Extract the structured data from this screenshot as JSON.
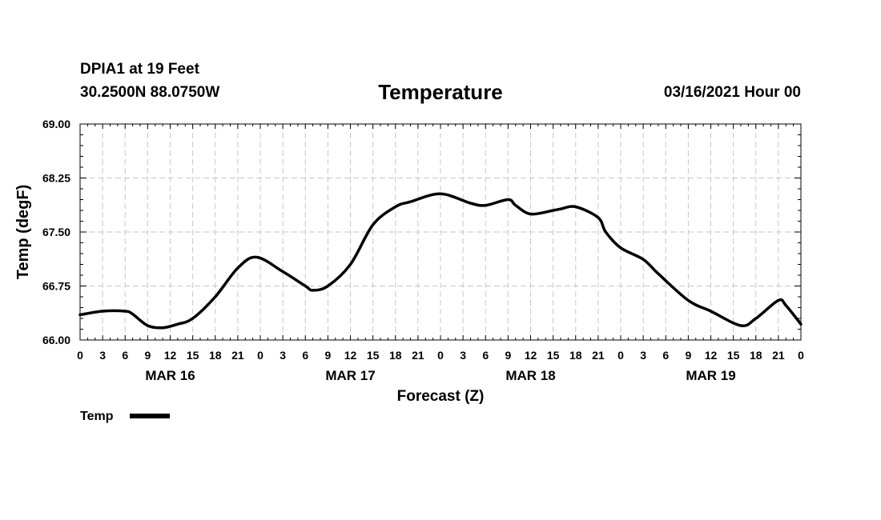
{
  "header": {
    "station": "DPIA1 at 19 Feet",
    "coords": "30.2500N 88.0750W",
    "title": "Temperature",
    "run_time": "03/16/2021 Hour 00"
  },
  "legend": {
    "label": "Temp"
  },
  "chart_data": {
    "type": "line",
    "title": "Temperature",
    "xlabel": "Forecast (Z)",
    "ylabel": "Temp (degF)",
    "ylim": [
      66.0,
      69.0
    ],
    "y_ticks": [
      "66.00",
      "66.75",
      "67.50",
      "68.25",
      "69.00"
    ],
    "x_tick_labels": [
      "0",
      "3",
      "6",
      "9",
      "12",
      "15",
      "18",
      "21",
      "0",
      "3",
      "6",
      "9",
      "12",
      "15",
      "18",
      "21",
      "0",
      "3",
      "6",
      "9",
      "12",
      "15",
      "18",
      "21",
      "0",
      "3",
      "6",
      "9",
      "12",
      "15",
      "18",
      "21",
      "0"
    ],
    "day_labels": [
      {
        "label": "MAR 16",
        "hour": 12
      },
      {
        "label": "MAR 17",
        "hour": 36
      },
      {
        "label": "MAR 18",
        "hour": 60
      },
      {
        "label": "MAR 19",
        "hour": 84
      }
    ],
    "x_range_hours": [
      0,
      96
    ],
    "grid": true,
    "legend_position": "bottom-left",
    "series": [
      {
        "name": "Temp",
        "color": "#000000",
        "x_hours": [
          0,
          3,
          6,
          7,
          9,
          11,
          13,
          15,
          18,
          21,
          23.5,
          27,
          30,
          31,
          33,
          36,
          39,
          42,
          44,
          48,
          52,
          54,
          57,
          58,
          60,
          63,
          64,
          66,
          69,
          70,
          72,
          75,
          77,
          81,
          84,
          88,
          90,
          93,
          94,
          96
        ],
        "y_degF": [
          66.35,
          66.4,
          66.4,
          66.36,
          66.2,
          66.17,
          66.22,
          66.3,
          66.6,
          67.0,
          67.15,
          66.95,
          66.75,
          66.69,
          66.75,
          67.05,
          67.6,
          67.85,
          67.92,
          68.03,
          67.9,
          67.87,
          67.95,
          67.87,
          67.75,
          67.8,
          67.82,
          67.85,
          67.7,
          67.5,
          67.28,
          67.12,
          66.92,
          66.55,
          66.4,
          66.2,
          66.3,
          66.55,
          66.48,
          66.22
        ]
      }
    ]
  }
}
